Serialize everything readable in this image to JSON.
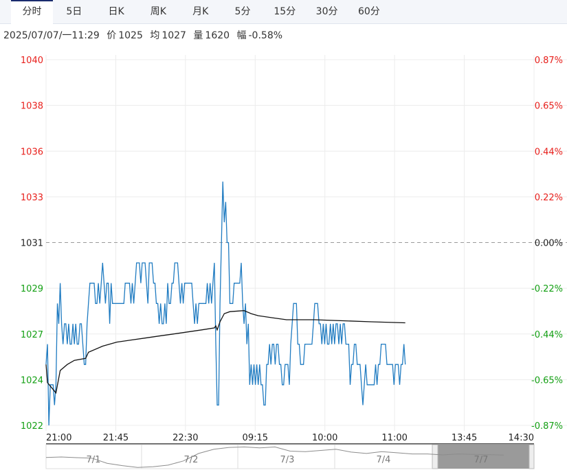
{
  "tabs": [
    {
      "label": "分时",
      "active": true
    },
    {
      "label": "5日",
      "active": false
    },
    {
      "label": "日K",
      "active": false
    },
    {
      "label": "周K",
      "active": false
    },
    {
      "label": "月K",
      "active": false
    },
    {
      "label": "5分",
      "active": false
    },
    {
      "label": "15分",
      "active": false
    },
    {
      "label": "30分",
      "active": false
    },
    {
      "label": "60分",
      "active": false
    }
  ],
  "info": {
    "datetime": "2025/07/07/一11:29",
    "price_label": "价",
    "price": "1025",
    "avg_label": "均",
    "avg": "1027",
    "volume_label": "量",
    "volume": "1620",
    "range_label": "幅",
    "range": "-0.58%"
  },
  "colors": {
    "up": "#e8201c",
    "down": "#14a014",
    "neutral": "#222222",
    "price_line": "#1f7bc1",
    "avg_line": "#111111"
  },
  "chart_data": {
    "type": "line",
    "prev_close": 1031,
    "ylim": [
      1022,
      1040
    ],
    "y_ticks_left": [
      "1040",
      "1038",
      "1036",
      "1033",
      "1031",
      "1029",
      "1027",
      "1024",
      "1022"
    ],
    "y_ticks_right": [
      "0.87%",
      "0.65%",
      "0.44%",
      "0.22%",
      "0.00%",
      "-0.22%",
      "-0.44%",
      "-0.65%",
      "-0.87%"
    ],
    "x_ticks": [
      "21:00",
      "21:45",
      "22:30",
      "09:15",
      "10:00",
      "11:00",
      "13:45",
      "14:30"
    ],
    "grid": true,
    "series": [
      {
        "key": "price",
        "start": "21:00",
        "interval": "1min",
        "values": [
          1025,
          1026,
          1022,
          1024,
          1024,
          1024,
          1023,
          1024,
          1028,
          1027,
          1029,
          1027,
          1026,
          1027,
          1027,
          1026,
          1027,
          1026,
          1026,
          1027,
          1026,
          1027,
          1026,
          1026,
          1027,
          1027,
          1026,
          1025,
          1025,
          1027,
          1028,
          1029,
          1029,
          1029,
          1029,
          1028,
          1028,
          1029,
          1028,
          1029,
          1030,
          1029,
          1028,
          1029,
          1029,
          1027,
          1029,
          1028,
          1028,
          1028,
          1028,
          1028,
          1028,
          1028,
          1028,
          1028,
          1029,
          1029,
          1029,
          1029,
          1028,
          1029,
          1028,
          1029,
          1030,
          1030,
          1030,
          1029,
          1030,
          1030,
          1030,
          1029,
          1028,
          1030,
          1030,
          1030,
          1029,
          1029,
          1028,
          1028,
          1027,
          1028,
          1027,
          1027,
          1028,
          1027,
          1029,
          1028,
          1028,
          1029,
          1029,
          1030,
          1030,
          1030,
          1029,
          1028,
          1029,
          1028,
          1029,
          1029,
          1029,
          1029,
          1029,
          1029,
          1028,
          1027,
          1028,
          1027,
          1028,
          1028,
          1028,
          1028,
          1028,
          1028,
          1029,
          1028,
          1029,
          1028,
          1029,
          1030,
          1026,
          1023,
          1023,
          1028,
          1031,
          1034,
          1032,
          1033,
          1031,
          1031,
          1028,
          1028,
          1028,
          1029,
          1029,
          1029,
          1029,
          1029,
          1030,
          1028,
          1027,
          1028,
          1026,
          1027,
          1024,
          1025,
          1024,
          1025,
          1024,
          1025,
          1024,
          1025,
          1024,
          1024,
          1023,
          1023,
          1025,
          1025,
          1026,
          1025,
          1026,
          1026,
          1025,
          1026,
          1026,
          1025,
          1025,
          1024,
          1024,
          1025,
          1025,
          1025,
          1024,
          1026,
          1027,
          1028,
          1028,
          1028,
          1026,
          1026,
          1025,
          1025,
          1025,
          1026,
          1026,
          1026,
          1026,
          1026,
          1026,
          1027,
          1028,
          1028,
          1028,
          1027,
          1027,
          1026,
          1027,
          1026,
          1027,
          1026,
          1026,
          1027,
          1026,
          1027,
          1026,
          1027,
          1027,
          1026,
          1027,
          1026,
          1027,
          1027,
          1026,
          1026,
          1026,
          1024,
          1025,
          1025,
          1026,
          1026,
          1025,
          1025,
          1025,
          1024,
          1023,
          1024,
          1025,
          1024,
          1024,
          1024,
          1024,
          1024,
          1024,
          1025,
          1024,
          1025,
          1025,
          1026,
          1026,
          1026,
          1026,
          1025,
          1025,
          1025,
          1025,
          1025,
          1024,
          1025,
          1025,
          1025,
          1024,
          1025,
          1025,
          1026,
          1025
        ]
      },
      {
        "key": "average",
        "points": [
          [
            "21:00",
            1025.0
          ],
          [
            "21:01",
            1024.1
          ],
          [
            "21:07",
            1023.6
          ],
          [
            "21:10",
            1024.7
          ],
          [
            "21:15",
            1025.0
          ],
          [
            "21:20",
            1025.2
          ],
          [
            "21:28",
            1025.3
          ],
          [
            "21:30",
            1025.6
          ],
          [
            "21:40",
            1025.9
          ],
          [
            "21:50",
            1026.1
          ],
          [
            "22:00",
            1026.2
          ],
          [
            "22:10",
            1026.3
          ],
          [
            "22:20",
            1026.4
          ],
          [
            "22:30",
            1026.5
          ],
          [
            "22:40",
            1026.6
          ],
          [
            "22:50",
            1026.7
          ],
          [
            "22:59",
            1026.8
          ],
          [
            "09:00",
            1026.9
          ],
          [
            "09:01",
            1026.7
          ],
          [
            "09:03",
            1027.1
          ],
          [
            "09:06",
            1027.5
          ],
          [
            "09:10",
            1027.6
          ],
          [
            "09:20",
            1027.65
          ],
          [
            "09:25",
            1027.5
          ],
          [
            "09:30",
            1027.4
          ],
          [
            "09:40",
            1027.3
          ],
          [
            "09:50",
            1027.2
          ],
          [
            "10:10",
            1027.2
          ],
          [
            "10:45",
            1027.15
          ],
          [
            "11:05",
            1027.1
          ],
          [
            "11:29",
            1027.05
          ]
        ]
      }
    ]
  },
  "navigator": {
    "days": [
      "7/1",
      "7/2",
      "7/3",
      "7/4",
      "7/7"
    ],
    "selected_day": "7/7",
    "overview_levels": [
      0.45,
      0.47,
      0.44,
      0.42,
      0.2,
      0.1,
      0.02,
      0.05,
      0.12,
      0.3,
      0.62,
      0.8,
      0.88,
      0.9,
      0.86,
      0.9,
      0.72,
      0.7,
      0.75,
      0.8,
      0.68,
      0.62,
      0.7,
      0.65,
      0.6,
      0.6,
      0.56,
      0.6,
      0.58,
      0.57,
      0.55
    ]
  }
}
